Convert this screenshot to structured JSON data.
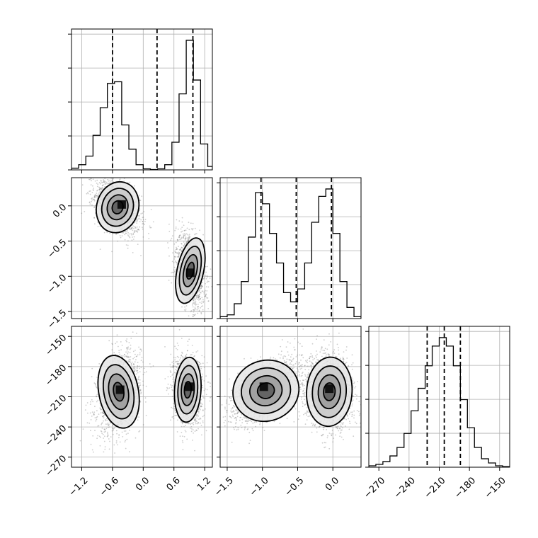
{
  "chart_data": {
    "type": "corner",
    "grid": true,
    "parameters": [
      {
        "range": [
          -1.4,
          1.35
        ],
        "ticks": [
          -1.2,
          -0.6,
          0.0,
          0.6,
          1.2
        ],
        "tick_labels": [
          "−1.2",
          "−0.6",
          "0.0",
          "0.6",
          "1.2"
        ],
        "quantiles": [
          -0.6,
          0.27,
          0.97
        ],
        "hist": {
          "edges": [
            -1.4,
            -1.26,
            -1.12,
            -0.98,
            -0.84,
            -0.7,
            -0.56,
            -0.42,
            -0.28,
            -0.14,
            0.0,
            0.14,
            0.28,
            0.42,
            0.56,
            0.7,
            0.84,
            0.98,
            1.12,
            1.26,
            1.35
          ],
          "values": [
            0.5,
            1.5,
            4,
            10,
            18,
            25,
            25.5,
            13,
            6,
            1.5,
            0.3,
            0.1,
            0.3,
            1.5,
            8,
            22,
            37.5,
            26,
            7.5,
            1
          ]
        }
      },
      {
        "range": [
          -1.6,
          0.4
        ],
        "ticks": [
          -1.5,
          -1.0,
          -0.5,
          0.0
        ],
        "tick_labels": [
          "−1.5",
          "−1.0",
          "−0.5",
          "0.0"
        ],
        "quantiles": [
          -1.02,
          -0.52,
          -0.02
        ],
        "hist": {
          "edges": [
            -1.6,
            -1.5,
            -1.4,
            -1.3,
            -1.2,
            -1.1,
            -1.0,
            -0.9,
            -0.8,
            -0.7,
            -0.6,
            -0.5,
            -0.4,
            -0.3,
            -0.2,
            -0.1,
            0.0,
            0.1,
            0.2,
            0.3,
            0.4
          ],
          "values": [
            0.5,
            1,
            4,
            10,
            22,
            34,
            31,
            23,
            15,
            7,
            4.5,
            8,
            15,
            26,
            33,
            35,
            23,
            10,
            3,
            0.5
          ]
        }
      },
      {
        "range": [
          -280,
          -140
        ],
        "ticks": [
          -270,
          -240,
          -210,
          -180,
          -150
        ],
        "tick_labels": [
          "−270",
          "−240",
          "−210",
          "−180",
          "−150"
        ],
        "quantiles": [
          -222,
          -205,
          -189
        ],
        "hist": {
          "edges": [
            -280,
            -273,
            -266,
            -259,
            -252,
            -245,
            -238,
            -231,
            -224,
            -217,
            -210,
            -203,
            -196,
            -189,
            -182,
            -175,
            -168,
            -161,
            -154,
            -147,
            -140
          ],
          "values": [
            0.5,
            1,
            2,
            4,
            7,
            12,
            20,
            28,
            36,
            43,
            46,
            43,
            36,
            24,
            14,
            7,
            3,
            1.5,
            0.5,
            0.2
          ]
        }
      }
    ],
    "y_axis_ticks": {
      "p2": {
        "ticks": [
          0.0,
          -0.5,
          -1.0,
          -1.5
        ],
        "tick_labels": [
          "0.0",
          "−0.5",
          "−1.0",
          "−1.5"
        ]
      },
      "p3": {
        "ticks": [
          -150,
          -180,
          -210,
          -240,
          -270
        ],
        "tick_labels": [
          "−150",
          "−180",
          "−210",
          "−240",
          "−270"
        ]
      }
    },
    "modes": {
      "p1_p2": [
        {
          "cx": -0.5,
          "cy": -0.02,
          "sx": 0.19,
          "sy": 0.17,
          "rho": -0.45,
          "n": 1600,
          "dense": [
            -0.42,
            0.02
          ]
        },
        {
          "cx": 0.92,
          "cy": -0.92,
          "sx": 0.12,
          "sy": 0.22,
          "rho": -0.35,
          "n": 1600,
          "dense": [
            0.92,
            -0.95
          ]
        }
      ],
      "p1_p3": [
        {
          "cx": -0.48,
          "cy": -205,
          "sx": 0.18,
          "sy": 17,
          "rho": 0.3,
          "n": 1600,
          "dense": [
            -0.45,
            -203
          ]
        },
        {
          "cx": 0.87,
          "cy": -203,
          "sx": 0.12,
          "sy": 15,
          "rho": -0.1,
          "n": 1600,
          "dense": [
            0.9,
            -200
          ]
        }
      ],
      "p2_p3": [
        {
          "cx": -0.95,
          "cy": -204,
          "sx": 0.22,
          "sy": 14,
          "rho": 0.55,
          "n": 1600,
          "dense": [
            -0.98,
            -200
          ]
        },
        {
          "cx": -0.05,
          "cy": -205,
          "sx": 0.15,
          "sy": 16,
          "rho": -0.1,
          "n": 1600,
          "dense": [
            -0.05,
            -202
          ]
        }
      ]
    }
  }
}
